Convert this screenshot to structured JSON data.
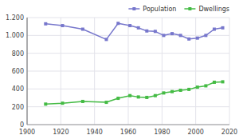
{
  "chart_data": {
    "type": "line",
    "x": [
      1911,
      1921,
      1933,
      1947,
      1954,
      1961,
      1966,
      1971,
      1976,
      1981,
      1986,
      1991,
      1996,
      2001,
      2006,
      2011,
      2016
    ],
    "series": [
      {
        "name": "Population",
        "color": "#7777cc",
        "values": [
          1130,
          1110,
          1070,
          955,
          1135,
          1110,
          1085,
          1050,
          1045,
          1000,
          1020,
          1000,
          960,
          970,
          1000,
          1070,
          1085
        ]
      },
      {
        "name": "Dwellings",
        "color": "#44bb44",
        "values": [
          230,
          240,
          260,
          250,
          295,
          325,
          310,
          305,
          325,
          355,
          370,
          385,
          395,
          420,
          435,
          475,
          480
        ]
      }
    ],
    "xlim": [
      1900,
      2020
    ],
    "xticks": [
      1900,
      1920,
      1940,
      1960,
      1980,
      2000,
      2020
    ],
    "ylim": [
      0,
      1200
    ],
    "yticks": [
      0,
      200,
      400,
      600,
      800,
      {
        "value": 1000,
        "label": "1.000"
      },
      {
        "value": 1200,
        "label": "1.200"
      }
    ],
    "grid": true,
    "legend": "upper right",
    "marker": "square"
  }
}
